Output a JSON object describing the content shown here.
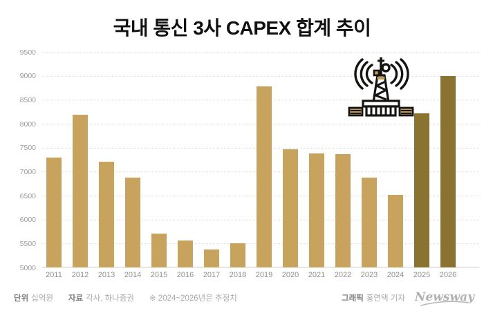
{
  "title": "국내 통신 3사 CAPEX 합계 추이",
  "chart_data": {
    "type": "bar",
    "title": "국내 통신 3사 CAPEX 합계 추이",
    "unit": "십억원",
    "categories": [
      "2011",
      "2012",
      "2013",
      "2014",
      "2015",
      "2016",
      "2017",
      "2018",
      "2019",
      "2020",
      "2021",
      "2022",
      "2023",
      "2024",
      "2025",
      "2026"
    ],
    "values": [
      7300,
      8190,
      7210,
      6870,
      5710,
      5570,
      5370,
      5500,
      8780,
      7470,
      7380,
      7360,
      6870,
      6510,
      8220,
      9000
    ],
    "estimate_years": [
      "2025",
      "2026"
    ],
    "estimate_note_years": "2024~2026",
    "ylim": [
      5000,
      9500
    ],
    "ytick_step": 500,
    "grid": "horizontal dotted",
    "legend": "none",
    "colors": {
      "bar": "#c7a35d",
      "bar_estimate": "#8a7230",
      "grid": "#e2e0dd",
      "axis_line": "#c9c9c9",
      "tick_text": "#9a9a9a"
    }
  },
  "icon": {
    "name": "telecom-tower-icon",
    "gold": "#bf9c51",
    "black": "#161412"
  },
  "footer": {
    "unit_label": "단위",
    "unit_value": "십억원",
    "source_label": "자료",
    "source_value": "각사, 하나증권",
    "note": "※ 2024~2026년은 추정치",
    "credit_label": "그래픽",
    "credit_value": "홍연택 기자",
    "brand": "Newsway"
  }
}
